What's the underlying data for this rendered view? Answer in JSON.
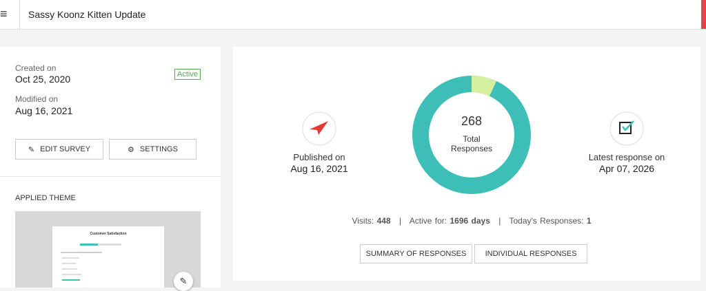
{
  "header": {
    "menu_icon": "≡",
    "title": "Sassy Koonz Kitten Update"
  },
  "survey_info": {
    "created_label": "Created on",
    "created_date": "Oct 25, 2020",
    "status": "Active",
    "modified_label": "Modified on",
    "modified_date": "Aug 16, 2021",
    "edit_button": "EDIT SURVEY",
    "settings_button": "SETTINGS"
  },
  "theme": {
    "heading": "APPLIED THEME",
    "preview_title": "Customer Satisfaction"
  },
  "summary": {
    "published_label": "Published on",
    "published_date": "Aug 16, 2021",
    "total": "268",
    "total_label_1": "Total",
    "total_label_2": "Responses",
    "latest_label": "Latest response on",
    "latest_date": "Apr 07, 2026",
    "stats": {
      "visits_label": "Visits:",
      "visits": "448",
      "separator": "|",
      "active_label": "Active for:",
      "active": "1696 days",
      "today_label": "Today's Responses:",
      "today": "1"
    },
    "summary_button": "SUMMARY OF RESPONSES",
    "individual_button": "INDIVIDUAL RESPONSES"
  }
}
